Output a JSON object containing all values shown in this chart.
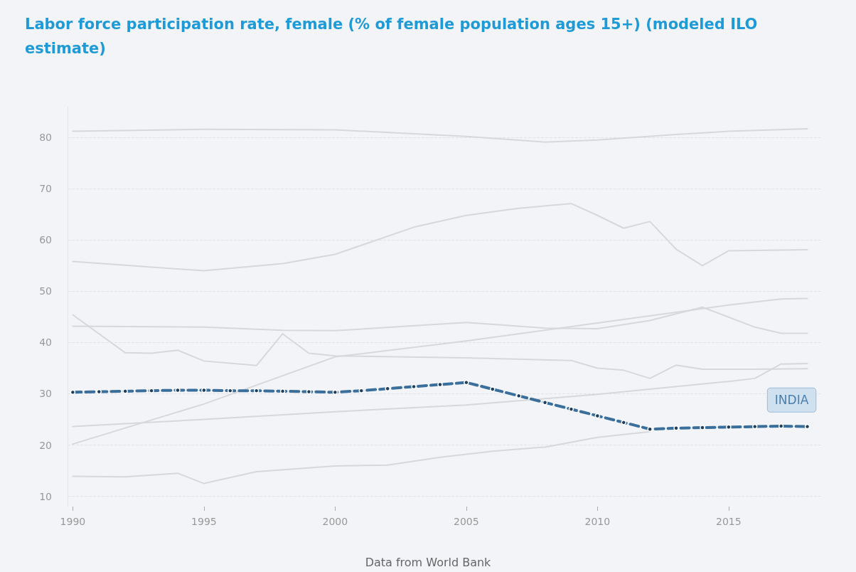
{
  "chart_data": {
    "type": "line",
    "title": "Labor force participation rate, female (% of female population ages 15+) (modeled ILO estimate)",
    "annotations": [
      "Data from World Bank"
    ],
    "xlim": [
      1989.8,
      2018.5
    ],
    "xticks": [
      1990,
      1995,
      2000,
      2005,
      2010,
      2015
    ],
    "ylim": [
      8,
      86
    ],
    "yticks": [
      10,
      20,
      30,
      40,
      50,
      60,
      70,
      80
    ],
    "grid": "y",
    "legend": false,
    "series": [
      {
        "color": "#d6d8dc",
        "marker": "none",
        "line_style": "solid",
        "x": [
          1990,
          1995,
          2000,
          2005,
          2008,
          2010,
          2013,
          2015,
          2018
        ],
        "values": [
          81.2,
          81.6,
          81.5,
          80.2,
          79.1,
          79.5,
          80.6,
          81.2,
          81.7
        ]
      },
      {
        "color": "#d6d8dc",
        "marker": "none",
        "line_style": "solid",
        "x": [
          1990,
          1995,
          1998,
          2000,
          2003,
          2005,
          2007,
          2009,
          2010,
          2011,
          2012,
          2013,
          2014,
          2015,
          2018
        ],
        "values": [
          55.8,
          54.0,
          55.4,
          57.2,
          62.5,
          64.8,
          66.2,
          67.1,
          64.8,
          62.3,
          63.6,
          58.2,
          55.0,
          57.9,
          58.1
        ]
      },
      {
        "color": "#d6d8dc",
        "marker": "none",
        "line_style": "solid",
        "x": [
          1990,
          1995,
          1998,
          2000,
          2005,
          2008,
          2010,
          2012,
          2014,
          2016,
          2017,
          2018
        ],
        "values": [
          43.2,
          43.0,
          42.4,
          42.3,
          43.9,
          42.8,
          42.7,
          44.3,
          46.9,
          43.0,
          41.8,
          41.8
        ]
      },
      {
        "color": "#d6d8dc",
        "marker": "none",
        "line_style": "solid",
        "x": [
          1990,
          1995,
          2000,
          2005,
          2010,
          2015,
          2017,
          2018
        ],
        "values": [
          20.2,
          28.0,
          37.2,
          40.3,
          43.8,
          47.3,
          48.5,
          48.6
        ]
      },
      {
        "color": "#d6d8dc",
        "marker": "none",
        "line_style": "solid",
        "x": [
          1990,
          1992,
          1993,
          1994,
          1995,
          1997,
          1998,
          1999,
          2000,
          2005,
          2009,
          2010,
          2011,
          2012,
          2013,
          2014,
          2016,
          2018
        ],
        "values": [
          45.4,
          38.0,
          37.9,
          38.5,
          36.4,
          35.5,
          41.7,
          37.9,
          37.4,
          37.0,
          36.5,
          35.0,
          34.6,
          33.0,
          35.6,
          34.8,
          34.8,
          34.9
        ]
      },
      {
        "color": "#d6d8dc",
        "marker": "none",
        "line_style": "solid",
        "x": [
          1990,
          1995,
          2000,
          2005,
          2010,
          2015,
          2016,
          2017,
          2018
        ],
        "values": [
          23.6,
          25.0,
          26.5,
          27.8,
          29.9,
          32.4,
          33.0,
          35.8,
          35.9
        ]
      },
      {
        "color": "#d6d8dc",
        "marker": "none",
        "line_style": "solid",
        "x": [
          1990,
          1992,
          1994,
          1995,
          1997,
          2000,
          2002,
          2004,
          2006,
          2008,
          2010,
          2012
        ],
        "values": [
          13.9,
          13.8,
          14.5,
          12.5,
          14.8,
          15.9,
          16.1,
          17.6,
          18.8,
          19.6,
          21.5,
          22.6
        ]
      },
      {
        "name": "INDIA",
        "color": "#3a6f9c",
        "marker": "circle",
        "line_style": "dashed",
        "x": [
          1990,
          1991,
          1992,
          1993,
          1994,
          1995,
          1996,
          1997,
          1998,
          1999,
          2000,
          2001,
          2002,
          2003,
          2004,
          2005,
          2006,
          2007,
          2008,
          2009,
          2010,
          2011,
          2012,
          2013,
          2014,
          2015,
          2016,
          2017,
          2018
        ],
        "values": [
          30.3,
          30.4,
          30.5,
          30.6,
          30.7,
          30.7,
          30.6,
          30.6,
          30.5,
          30.4,
          30.3,
          30.6,
          31.0,
          31.4,
          31.8,
          32.2,
          30.9,
          29.6,
          28.3,
          27.0,
          25.7,
          24.4,
          23.1,
          23.3,
          23.4,
          23.5,
          23.6,
          23.7,
          23.6
        ]
      }
    ]
  }
}
